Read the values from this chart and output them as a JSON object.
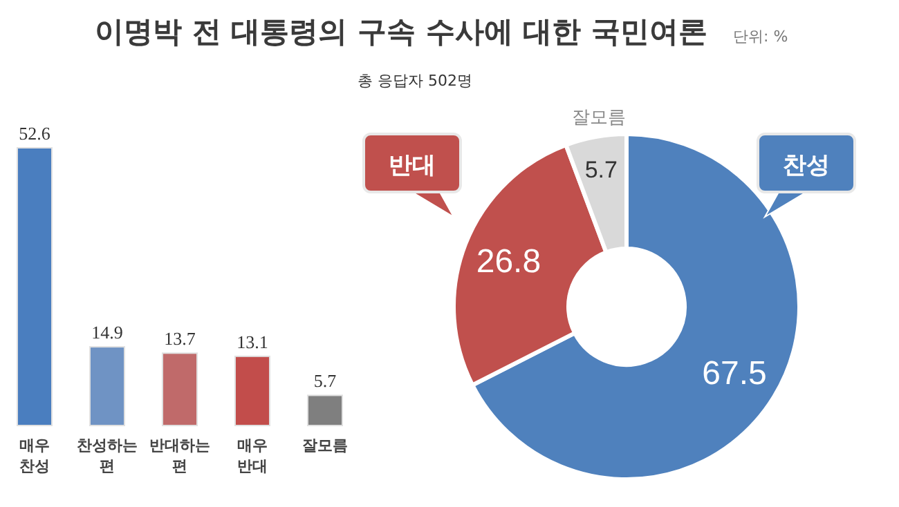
{
  "chart_data": [
    {
      "type": "bar",
      "title": "이명박 전 대통령의 구속 수사에 대한 국민여론",
      "subtitle": "총 응답자 502명",
      "annotations": [
        "단위: %"
      ],
      "categories": [
        "매우\n찬성",
        "찬성하는\n편",
        "반대하는\n편",
        "매우\n반대",
        "잘모름"
      ],
      "values": [
        52.6,
        14.9,
        13.7,
        13.1,
        5.7
      ],
      "colors": [
        "#4a7ebf",
        "#6f93c4",
        "#c06a6a",
        "#c24d4b",
        "#7f7f7f"
      ],
      "data_labels": true
    },
    {
      "type": "donut",
      "categories": [
        "찬성",
        "반대",
        "잘모름"
      ],
      "values": [
        67.5,
        26.8,
        5.7
      ],
      "colors": [
        "#4f81bd",
        "#c0504d",
        "#d9d9d9"
      ],
      "data_labels": true
    }
  ]
}
